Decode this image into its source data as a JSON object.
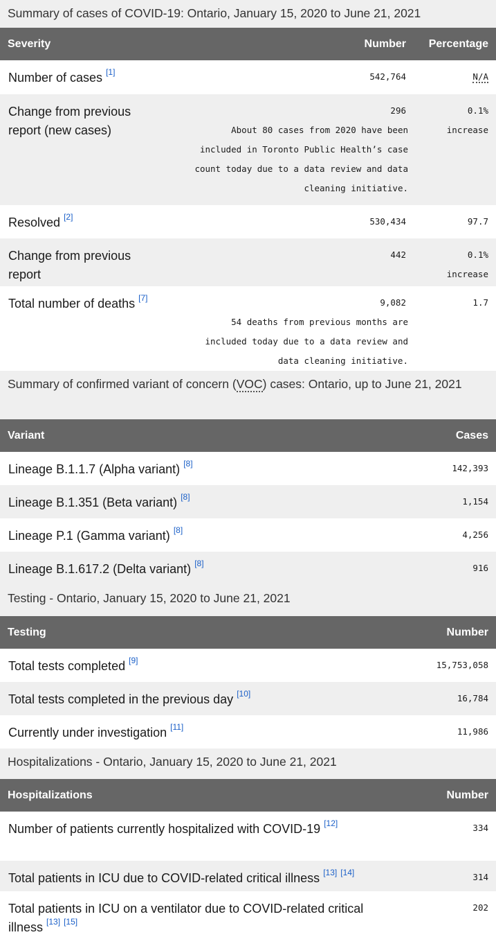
{
  "sections": [
    {
      "caption": "Summary of cases of COVID-19: Ontario, January 15, 2020 to June 21, 2021",
      "headers": [
        "Severity",
        "Number",
        "Percentage"
      ],
      "rows": [
        {
          "label": "Number of cases",
          "refs": [
            "[1]"
          ],
          "number": "542,764",
          "percentage": "N/A",
          "h": 49
        },
        {
          "label": "Change from previous report (new cases)",
          "refs": [],
          "number": "296",
          "note": "About 80 cases from 2020 have been included in Toronto Public Health’s case count today due to a data review and data cleaning initiative.",
          "percentage": "0.1% increase",
          "h": 160
        },
        {
          "label": "Resolved",
          "refs": [
            "[2]"
          ],
          "number": "530,434",
          "percentage": "97.7",
          "h": 48
        },
        {
          "label": "Change from previous report",
          "refs": [],
          "number": "442",
          "percentage": "0.1% increase",
          "h": 69
        },
        {
          "label": "Total number of deaths",
          "refs": [
            "[7]"
          ],
          "number": "9,082",
          "note": "54 deaths from previous months are included today due to a data review and data cleaning initiative.",
          "percentage": "1.7",
          "h": 116
        }
      ]
    },
    {
      "caption": "Summary of confirmed variant of concern (VOC) cases: Ontario, up to June 21, 2021",
      "headers": [
        "Variant",
        "Cases"
      ],
      "rows": [
        {
          "label": "Lineage B.1.1.7 (Alpha variant)",
          "refs": [
            "[8]"
          ],
          "number": "142,393",
          "h": 48
        },
        {
          "label": "Lineage B.1.351 (Beta variant)",
          "refs": [
            "[8]"
          ],
          "number": "1,154",
          "h": 48
        },
        {
          "label": "Lineage P.1 (Gamma variant)",
          "refs": [
            "[8]"
          ],
          "number": "4,256",
          "h": 48
        },
        {
          "label": "Lineage B.1.617.2 (Delta variant)",
          "refs": [
            "[8]"
          ],
          "number": "916",
          "h": 48
        }
      ]
    },
    {
      "caption": "Testing - Ontario, January 15, 2020 to June 21, 2021",
      "headers": [
        "Testing",
        "Number"
      ],
      "rows": [
        {
          "label": "Total tests completed",
          "refs": [
            "[9]"
          ],
          "number": "15,753,058",
          "h": 48
        },
        {
          "label": "Total tests completed in the previous day",
          "refs": [
            "[10]"
          ],
          "number": "16,784",
          "h": 48
        },
        {
          "label": "Currently under investigation",
          "refs": [
            "[11]"
          ],
          "number": "11,986",
          "h": 48
        }
      ]
    },
    {
      "caption": "Hospitalizations - Ontario, January 15, 2020 to June 21, 2021",
      "headers": [
        "Hospitalizations",
        "Number"
      ],
      "rows": [
        {
          "label": "Number of patients currently hospitalized with COVID-19",
          "refs": [
            "[12]"
          ],
          "number": "334",
          "h": 71
        },
        {
          "label": "Total patients in ICU due to COVID-related critical illness",
          "refs": [
            "[13]",
            "[14]"
          ],
          "number": "314",
          "h": 44
        },
        {
          "label": "Total patients in ICU on a ventilator due to COVID-related critical illness",
          "refs": [
            "[13]",
            "[15]"
          ],
          "number": "202",
          "h": 62
        }
      ]
    }
  ]
}
